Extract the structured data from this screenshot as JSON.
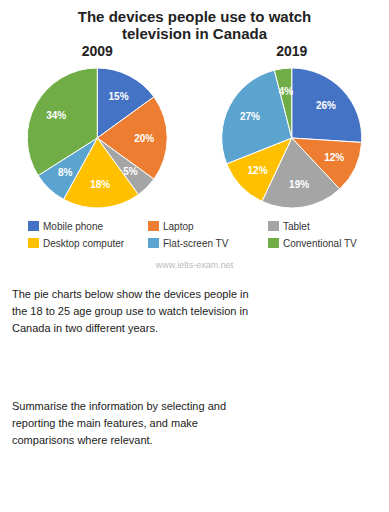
{
  "title": "The devices people use to watch\ntelevision in Canada",
  "annotations": [
    "www.ielts-exam.net",
    "The pie charts below show the devices people in\nthe 18 to 25 age group use to watch television in\nCanada in two different years.",
    "Summarise the information by selecting and\nreporting the main features, and make\ncomparisons where relevant."
  ],
  "chart_data": [
    {
      "type": "pie",
      "title": "2009",
      "categories": [
        "Mobile phone",
        "Laptop",
        "Tablet",
        "Desktop computer",
        "Flat-screen TV",
        "Conventional TV"
      ],
      "values": [
        15,
        20,
        5,
        18,
        8,
        34
      ],
      "value_labels": [
        "15%",
        "20%",
        "5%",
        "18%",
        "8%",
        "34%"
      ],
      "colors": [
        "#4472C4",
        "#ED7D31",
        "#A5A5A5",
        "#FFC000",
        "#5BA4CF",
        "#70AD47"
      ],
      "data_labels": true,
      "legend": "bottom"
    },
    {
      "type": "pie",
      "title": "2019",
      "categories": [
        "Mobile phone",
        "Laptop",
        "Tablet",
        "Desktop computer",
        "Flat-screen TV",
        "Conventional TV"
      ],
      "values": [
        26,
        12,
        19,
        12,
        27,
        4
      ],
      "value_labels": [
        "26%",
        "12%",
        "19%",
        "12%",
        "27%",
        "4%"
      ],
      "colors": [
        "#4472C4",
        "#ED7D31",
        "#A5A5A5",
        "#FFC000",
        "#5BA4CF",
        "#70AD47"
      ],
      "data_labels": true
    }
  ]
}
